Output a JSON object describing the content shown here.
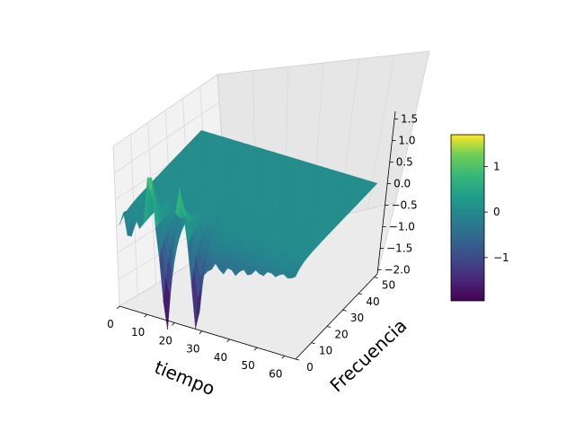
{
  "chart_data": {
    "type": "surface",
    "xlabel": "tiempo",
    "ylabel": "Frecuencia",
    "zlabel": "",
    "xlim": [
      0,
      64
    ],
    "ylim": [
      0,
      52
    ],
    "zlim": [
      -2.05,
      1.7
    ],
    "x_ticks": [
      "0",
      "10",
      "20",
      "30",
      "40",
      "50",
      "60"
    ],
    "y_ticks": [
      "0",
      "10",
      "20",
      "30",
      "40",
      "50"
    ],
    "z_ticks": [
      "−2.0",
      "−1.5",
      "−1.0",
      "−0.5",
      "0.0",
      "0.5",
      "1.0",
      "1.5"
    ],
    "colormap": "viridis",
    "colorbar": {
      "ticks": [
        "1",
        "0",
        "−1"
      ],
      "range": [
        -1.95,
        1.7
      ]
    },
    "grid": true,
    "surface_features": [
      {
        "x": 17,
        "y": 0,
        "z": -1.95,
        "note": "deep minimum"
      },
      {
        "x": 11,
        "y": 0,
        "z": 1.35,
        "note": "peak"
      },
      {
        "x": 22,
        "y": 0,
        "z": 1.5,
        "note": "peak"
      },
      {
        "x": 28,
        "y": 0,
        "z": -1.5,
        "note": "minimum"
      }
    ]
  }
}
